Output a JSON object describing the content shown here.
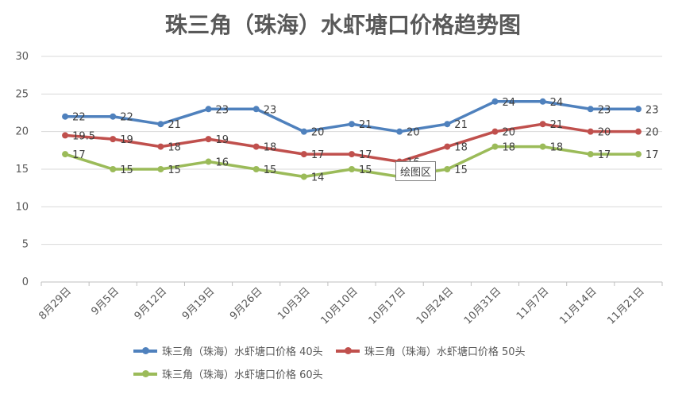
{
  "chart_data": {
    "type": "line",
    "title": "珠三角（珠海）水虾塘口价格趋势图",
    "categories": [
      "8月29日",
      "9月5日",
      "9月12日",
      "9月19日",
      "9月26日",
      "10月3日",
      "10月10日",
      "10月17日",
      "10月24日",
      "10月31日",
      "11月7日",
      "11月14日",
      "11月21日"
    ],
    "ylim": [
      0,
      30
    ],
    "yticks": [
      0,
      5,
      10,
      15,
      20,
      25,
      30
    ],
    "grid": true,
    "legend_position": "bottom",
    "series": [
      {
        "name": "珠三角（珠海）水虾塘口价格 40头",
        "color": "#4f81bd",
        "values": [
          22,
          22,
          21,
          23,
          23,
          20,
          21,
          20,
          21,
          24,
          24,
          23,
          23
        ]
      },
      {
        "name": "珠三角（珠海）水虾塘口价格 50头",
        "color": "#c0504d",
        "values": [
          19.5,
          19,
          18,
          19,
          18,
          17,
          17,
          16,
          18,
          20,
          21,
          20,
          20
        ]
      },
      {
        "name": "珠三角（珠海）水虾塘口价格 60头",
        "color": "#9bbb59",
        "values": [
          17,
          15,
          15,
          16,
          15,
          14,
          15,
          14,
          15,
          18,
          18,
          17,
          17
        ]
      }
    ]
  },
  "tooltip": "绘图区"
}
